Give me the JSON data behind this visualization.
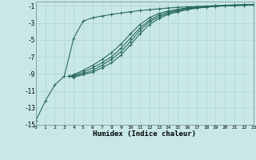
{
  "xlabel": "Humidex (Indice chaleur)",
  "background_color": "#c8e8e8",
  "grid_color": "#b0d4d4",
  "line_color": "#2a6b5a",
  "xlim": [
    0,
    23
  ],
  "ylim": [
    -15,
    -0.5
  ],
  "yticks": [
    -15,
    -13,
    -11,
    -9,
    -7,
    -5,
    -3,
    -1
  ],
  "xticks": [
    0,
    1,
    2,
    3,
    4,
    5,
    6,
    7,
    8,
    9,
    10,
    11,
    12,
    13,
    14,
    15,
    16,
    17,
    18,
    19,
    20,
    21,
    22,
    23
  ],
  "series": [
    {
      "x": [
        0,
        1,
        2,
        3,
        4,
        5,
        6,
        7,
        8,
        9,
        10,
        11,
        12,
        13,
        14,
        15,
        16,
        17,
        18,
        19,
        20,
        21,
        22,
        23
      ],
      "y": [
        -14.5,
        -12.2,
        -10.3,
        -9.3,
        -4.8,
        -2.8,
        -2.4,
        -2.2,
        -2.0,
        -1.85,
        -1.7,
        -1.55,
        -1.45,
        -1.35,
        -1.25,
        -1.18,
        -1.12,
        -1.08,
        -1.04,
        -1.01,
        -0.98,
        -0.96,
        -0.93,
        -0.91
      ]
    },
    {
      "x": [
        3.5,
        4,
        5,
        6,
        7,
        8,
        9,
        10,
        11,
        12,
        13,
        14,
        15,
        16,
        17,
        18,
        19,
        20,
        21,
        22,
        23
      ],
      "y": [
        -9.3,
        -9.1,
        -8.6,
        -8.0,
        -7.3,
        -6.5,
        -5.5,
        -4.3,
        -3.2,
        -2.4,
        -1.9,
        -1.6,
        -1.4,
        -1.25,
        -1.12,
        -1.03,
        -0.97,
        -0.93,
        -0.89,
        -0.86,
        -0.83
      ]
    },
    {
      "x": [
        3.5,
        4,
        5,
        6,
        7,
        8,
        9,
        10,
        11,
        12,
        13,
        14,
        15,
        16,
        17,
        18,
        19,
        20,
        21,
        22,
        23
      ],
      "y": [
        -9.3,
        -9.2,
        -8.8,
        -8.3,
        -7.7,
        -7.0,
        -6.0,
        -4.8,
        -3.6,
        -2.7,
        -2.1,
        -1.75,
        -1.5,
        -1.32,
        -1.18,
        -1.08,
        -1.01,
        -0.96,
        -0.92,
        -0.88,
        -0.85
      ]
    },
    {
      "x": [
        3.5,
        4,
        5,
        6,
        7,
        8,
        9,
        10,
        11,
        12,
        13,
        14,
        15,
        16,
        17,
        18,
        19,
        20,
        21,
        22,
        23
      ],
      "y": [
        -9.3,
        -9.3,
        -9.0,
        -8.6,
        -8.0,
        -7.3,
        -6.4,
        -5.2,
        -3.9,
        -2.9,
        -2.3,
        -1.9,
        -1.6,
        -1.38,
        -1.23,
        -1.12,
        -1.04,
        -0.99,
        -0.94,
        -0.9,
        -0.87
      ]
    },
    {
      "x": [
        3.5,
        4,
        5,
        6,
        7,
        8,
        9,
        10,
        11,
        12,
        13,
        14,
        15,
        16,
        17,
        18,
        19,
        20,
        21,
        22,
        23
      ],
      "y": [
        -9.3,
        -9.4,
        -9.1,
        -8.8,
        -8.3,
        -7.7,
        -6.8,
        -5.6,
        -4.3,
        -3.2,
        -2.5,
        -2.0,
        -1.7,
        -1.45,
        -1.28,
        -1.16,
        -1.07,
        -1.01,
        -0.97,
        -0.92,
        -0.89
      ]
    }
  ]
}
